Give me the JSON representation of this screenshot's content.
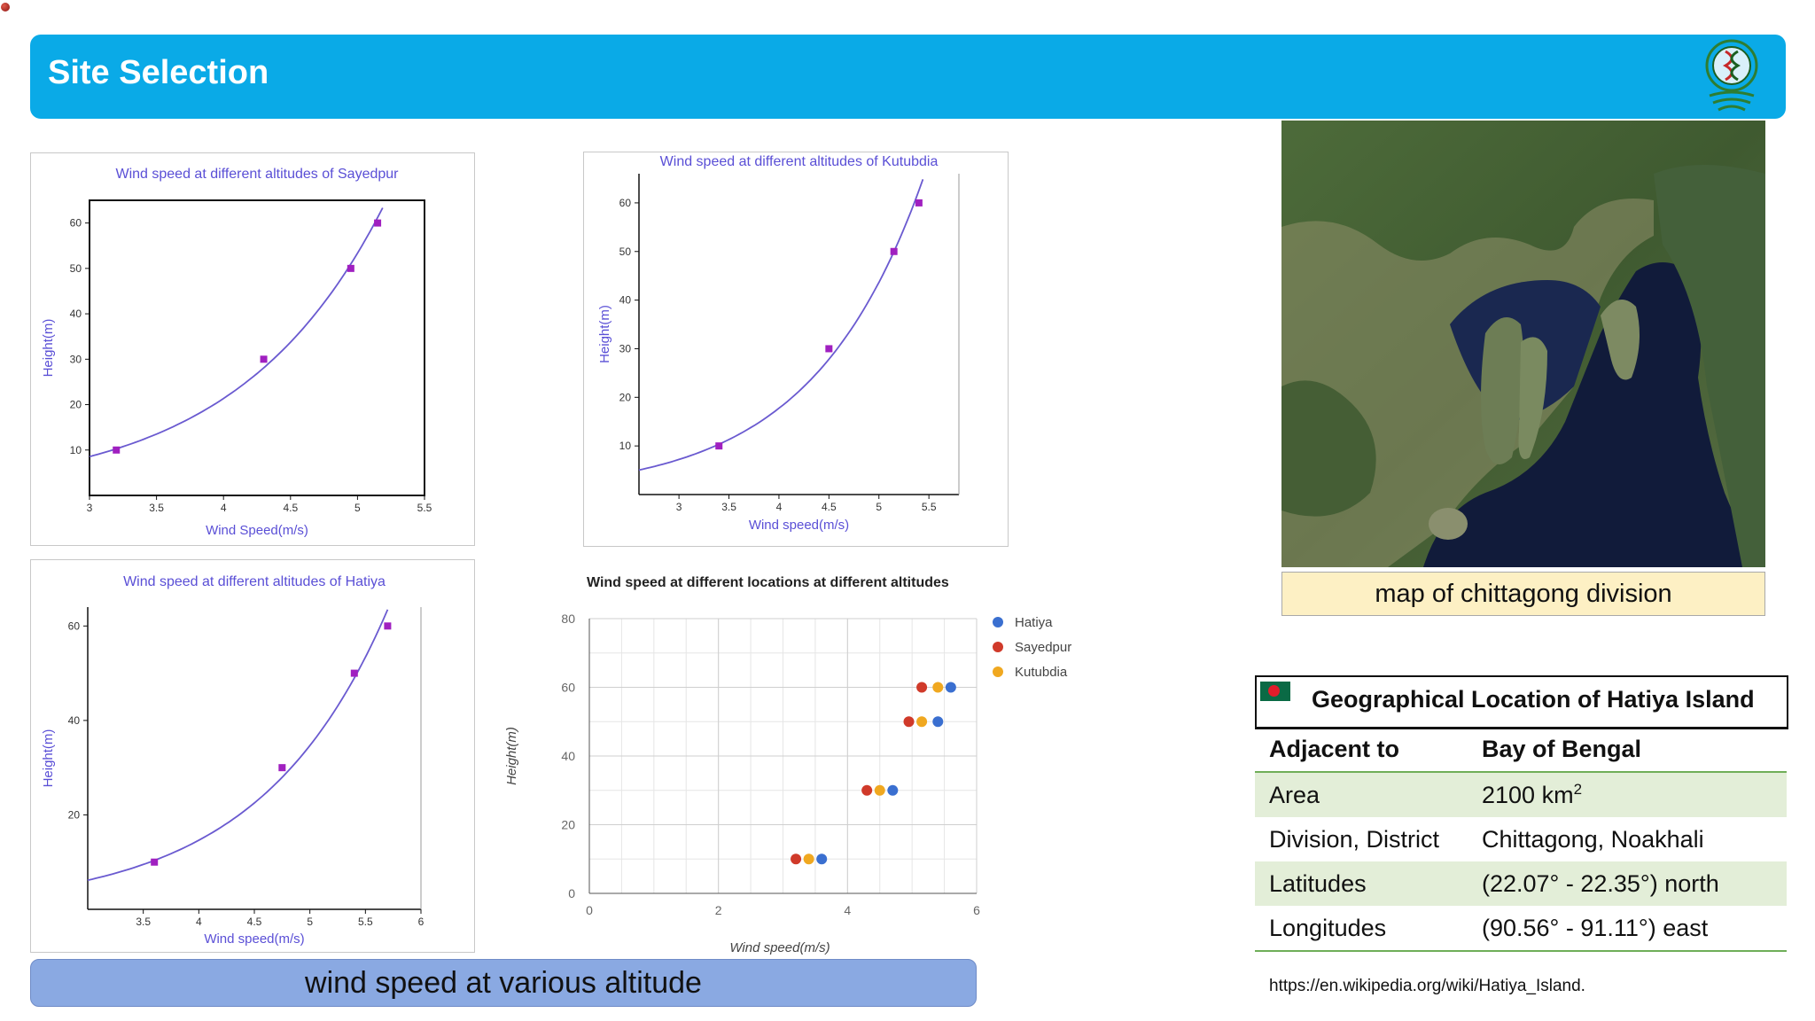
{
  "header": {
    "title": "Site Selection"
  },
  "caption": "wind speed at various altitude",
  "map": {
    "caption": "map of chittagong division"
  },
  "geo": {
    "title": "Geographical Location of Hatiya Island",
    "rows": [
      {
        "label": "Adjacent to",
        "value": "Bay of Bengal"
      },
      {
        "label": "Area",
        "value": "2100 km",
        "sup": "2"
      },
      {
        "label": "Division, District",
        "value": "Chittagong, Noakhali"
      },
      {
        "label": "Latitudes",
        "value": "(22.07° - 22.35°) north"
      },
      {
        "label": "Longitudes",
        "value": "(90.56° - 91.11°) east"
      }
    ]
  },
  "source": "https://en.wikipedia.org/wiki/Hatiya_Island.",
  "chart_data": [
    {
      "type": "line",
      "title": "Wind speed at different altitudes of Sayedpur",
      "xlabel": "Wind Speed(m/s)",
      "ylabel": "Height(m)",
      "xlim": [
        3,
        5.5
      ],
      "ylim": [
        0,
        65
      ],
      "xticks": [
        "3",
        "3.5",
        "4",
        "4.5",
        "5",
        "5.5"
      ],
      "yticks": [
        "10",
        "20",
        "30",
        "40",
        "50",
        "60"
      ],
      "x": [
        3.2,
        4.3,
        4.95,
        5.15
      ],
      "y": [
        10,
        30,
        50,
        60
      ]
    },
    {
      "type": "line",
      "title": "Wind speed at different altitudes of Kutubdia",
      "xlabel": "Wind speed(m/s)",
      "ylabel": "Height(m)",
      "xlim": [
        2.6,
        5.8
      ],
      "ylim": [
        0,
        66
      ],
      "xticks": [
        "3",
        "3.5",
        "4",
        "4.5",
        "5",
        "5.5"
      ],
      "yticks": [
        "10",
        "20",
        "30",
        "40",
        "50",
        "60"
      ],
      "x": [
        3.4,
        4.5,
        5.15,
        5.4
      ],
      "y": [
        10,
        30,
        50,
        60
      ]
    },
    {
      "type": "line",
      "title": "Wind speed at different altitudes of Hatiya",
      "xlabel": "Wind speed(m/s)",
      "ylabel": "Height(m)",
      "xlim": [
        3,
        6
      ],
      "ylim": [
        0,
        64
      ],
      "xticks": [
        "3.5",
        "4",
        "4.5",
        "5",
        "5.5",
        "6"
      ],
      "yticks": [
        "20",
        "40",
        "60"
      ],
      "x": [
        3.6,
        4.75,
        5.4,
        5.7
      ],
      "y": [
        10,
        30,
        50,
        60
      ]
    },
    {
      "type": "scatter",
      "title": "Wind speed at different locations at different altitudes",
      "xlabel": "Wind speed(m/s)",
      "ylabel": "Height(m)",
      "xlim": [
        0,
        6
      ],
      "ylim": [
        0,
        80
      ],
      "xticks": [
        "0",
        "2",
        "4",
        "6"
      ],
      "yticks": [
        "0",
        "20",
        "40",
        "60",
        "80"
      ],
      "series": [
        {
          "name": "Hatiya",
          "color": "#3a6fd0",
          "x": [
            3.6,
            4.7,
            5.4,
            5.6
          ],
          "y": [
            10,
            30,
            50,
            60
          ]
        },
        {
          "name": "Sayedpur",
          "color": "#d03a2a",
          "x": [
            3.2,
            4.3,
            4.95,
            5.15
          ],
          "y": [
            10,
            30,
            50,
            60
          ]
        },
        {
          "name": "Kutubdia",
          "color": "#f0a820",
          "x": [
            3.4,
            4.5,
            5.15,
            5.4
          ],
          "y": [
            10,
            30,
            50,
            60
          ]
        }
      ],
      "legend": "right"
    }
  ]
}
